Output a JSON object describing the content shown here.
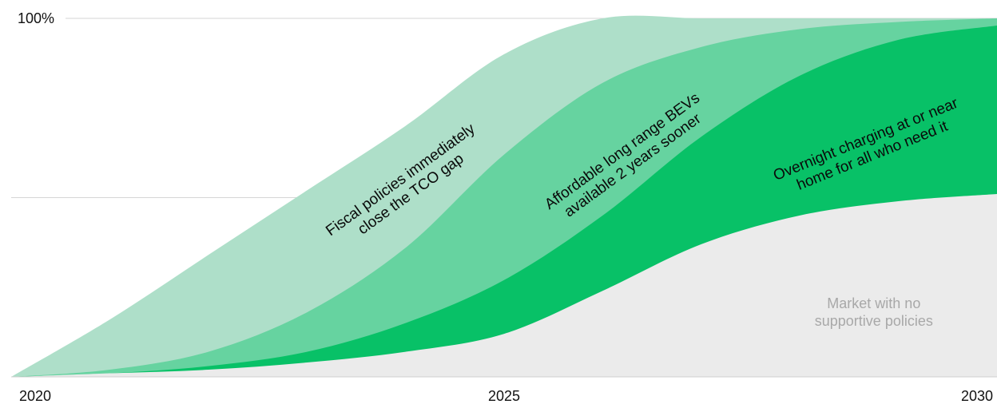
{
  "chart_data": {
    "type": "area",
    "x": [
      2020,
      2021,
      2022,
      2023,
      2024,
      2025,
      2026,
      2027,
      2028,
      2029,
      2030
    ],
    "xlim": [
      2020,
      2030
    ],
    "ylim": [
      0,
      100
    ],
    "x_ticks": [
      "2020",
      "2025",
      "2030"
    ],
    "y_ticks": [
      {
        "value": 100,
        "label": "100%"
      },
      {
        "value": 50,
        "label": ""
      }
    ],
    "grid": true,
    "series": [
      {
        "name": "Market with no supportive policies",
        "color": "#ebebeb",
        "values": [
          0,
          1,
          2,
          4,
          7,
          12,
          24,
          37,
          45,
          49,
          51
        ]
      },
      {
        "name": "Overnight charging at or near home for all who need it",
        "color": "#08c167",
        "values": [
          0,
          1,
          3,
          7,
          15,
          27,
          45,
          67,
          84,
          94,
          98
        ]
      },
      {
        "name": "Affordable long range BEVs available 2 years sooner",
        "color": "#66d3a0",
        "values": [
          0,
          2,
          7,
          18,
          36,
          62,
          82,
          92,
          97,
          99,
          100
        ]
      },
      {
        "name": "Fiscal policies immediately close the TCO gap",
        "color": "#aedfc9",
        "values": [
          0,
          16,
          34,
          52,
          70,
          90,
          100,
          100,
          100,
          100,
          100
        ]
      }
    ],
    "annotations": [
      {
        "series": 3,
        "lines": [
          "Fiscal policies immediately",
          "close the TCO gap"
        ],
        "at_x": 2024.0,
        "at_y": 53,
        "angle": -36,
        "style": "dark"
      },
      {
        "series": 2,
        "lines": [
          "Affordable long range BEVs",
          "available 2 years sooner"
        ],
        "at_x": 2026.25,
        "at_y": 61,
        "angle": -36,
        "style": "dark"
      },
      {
        "series": 1,
        "lines": [
          "Overnight charging at or near",
          "home for all who need it"
        ],
        "at_x": 2028.7,
        "at_y": 64,
        "angle": -22,
        "style": "dark"
      },
      {
        "series": 0,
        "lines": [
          "Market with no",
          "supportive policies"
        ],
        "at_x": 2028.75,
        "at_y": 18,
        "angle": 0,
        "style": "grey"
      }
    ]
  }
}
